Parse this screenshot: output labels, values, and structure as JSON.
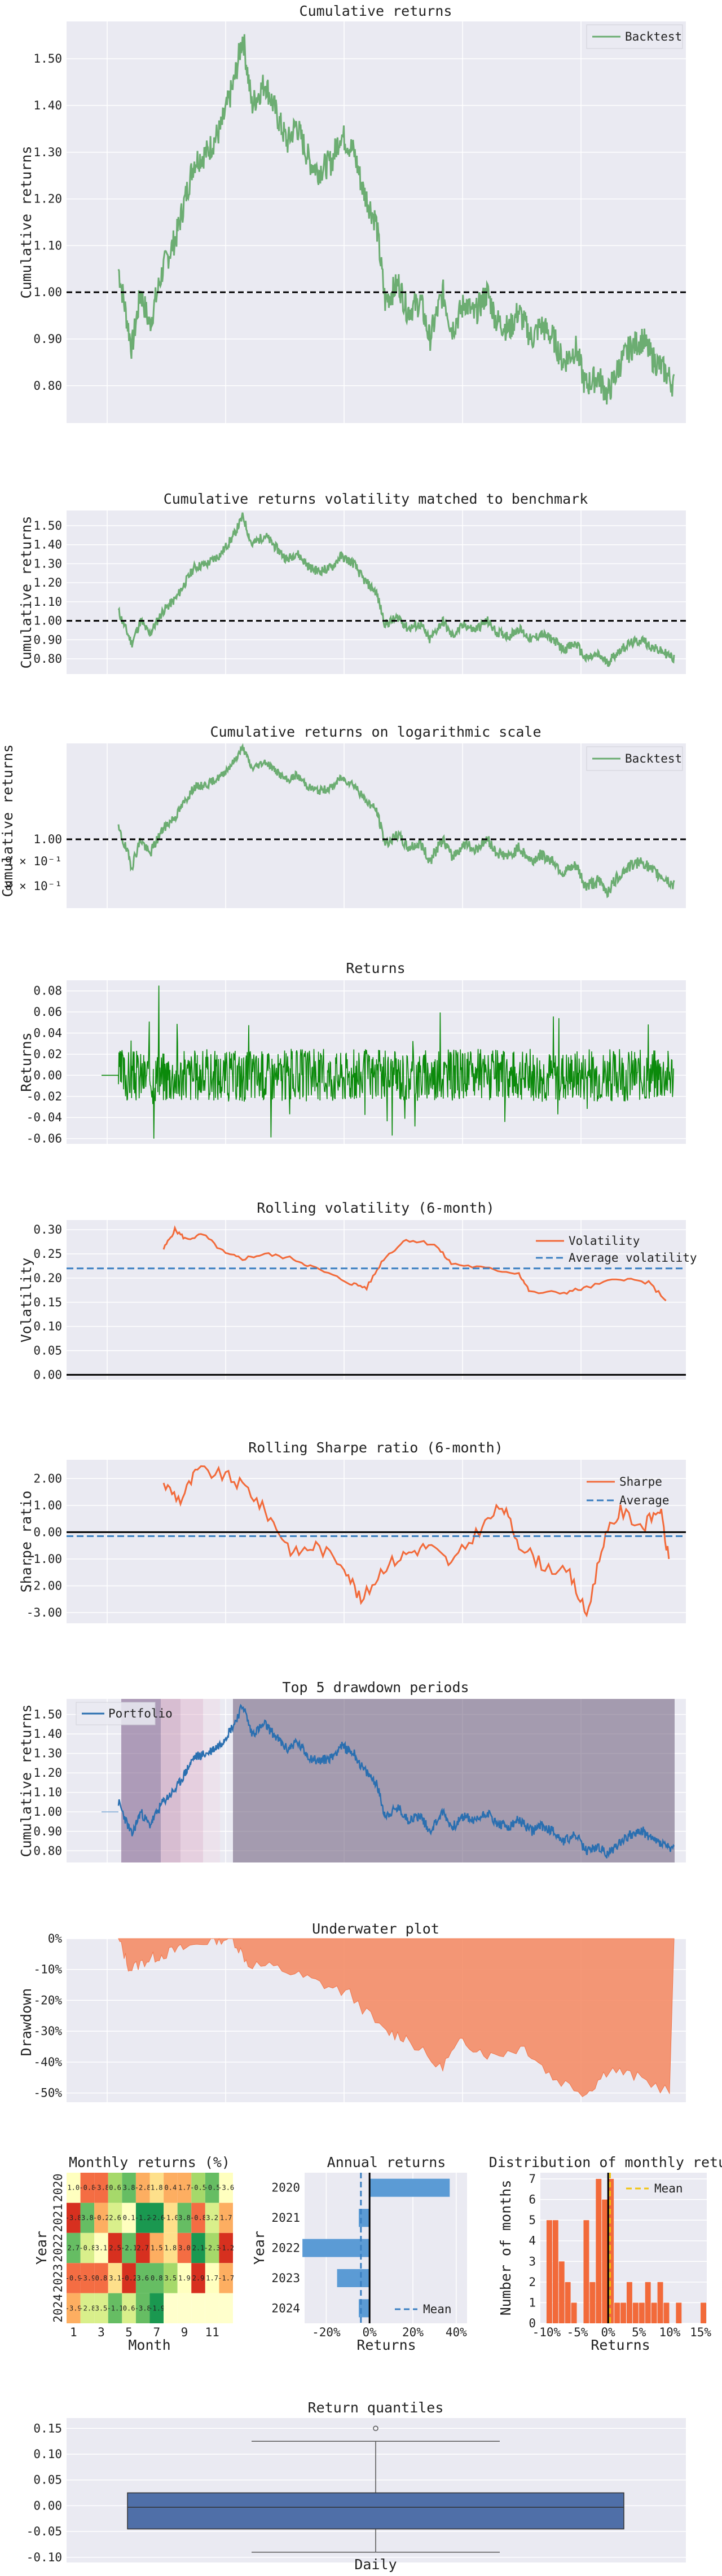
{
  "charts": {
    "c1": {
      "type": "line",
      "title": "Cumulative returns",
      "ylabel": "Cumulative returns",
      "ytick_labels": [
        "1.50",
        "1.40",
        "1.30",
        "1.20",
        "1.10",
        "1.00",
        "0.90",
        "0.80"
      ],
      "legend": [
        "Backtest"
      ]
    },
    "c2": {
      "type": "line",
      "title": "Cumulative returns volatility matched to benchmark",
      "ylabel": "Cumulative returns",
      "ytick_labels": [
        "1.50",
        "1.40",
        "1.30",
        "1.20",
        "1.10",
        "1.00",
        "0.90",
        "0.80"
      ]
    },
    "c3": {
      "type": "line",
      "title": "Cumulative returns on logarithmic scale",
      "ylabel": "Cumulative returns",
      "ytick_labels": [
        "1.00"
      ],
      "legend": [
        "Backtest"
      ]
    },
    "c4": {
      "type": "line",
      "title": "Returns",
      "ylabel": "Returns",
      "ytick_labels": [
        "0.08",
        "0.06",
        "0.04",
        "0.02",
        "0.00",
        "-0.02",
        "-0.04",
        "-0.06"
      ]
    },
    "c5": {
      "type": "line",
      "title": "Rolling volatility (6-month)",
      "ylabel": "Volatility",
      "ytick_labels": [
        "0.30",
        "0.25",
        "0.20",
        "0.15",
        "0.10",
        "0.05",
        "0.00"
      ],
      "legend": [
        "Volatility",
        "Average volatility"
      ]
    },
    "c6": {
      "type": "line",
      "title": "Rolling Sharpe ratio (6-month)",
      "ylabel": "Sharpe ratio",
      "ytick_labels": [
        "2.00",
        "1.00",
        "0.00",
        "-1.00",
        "-2.00",
        "-3.00"
      ],
      "legend": [
        "Sharpe",
        "Average"
      ]
    },
    "c7": {
      "type": "line",
      "title": "Top 5 drawdown periods",
      "ylabel": "Cumulative returns",
      "ytick_labels": [
        "1.50",
        "1.40",
        "1.30",
        "1.20",
        "1.10",
        "1.00",
        "0.90",
        "0.80"
      ],
      "legend": [
        "Portfolio"
      ]
    },
    "c8": {
      "type": "area",
      "title": "Underwater plot",
      "ylabel": "Drawdown",
      "ytick_labels": [
        "0%",
        "-10%",
        "-20%",
        "-30%",
        "-40%",
        "-50%"
      ]
    },
    "c9": {
      "type": "heatmap",
      "title": "Monthly returns (%)",
      "xlabel": "Month",
      "ylabel": "Year",
      "years": [
        "2020",
        "2021",
        "2022",
        "2023",
        "2024"
      ],
      "xtick_labels": [
        "1",
        "3",
        "5",
        "7",
        "9",
        "11"
      ]
    },
    "c10": {
      "type": "bar",
      "title": "Annual returns",
      "ylabel": "Year",
      "xlabel": "Returns",
      "categories": [
        "2020",
        "2021",
        "2022",
        "2023",
        "2024"
      ],
      "values": [
        37,
        -5,
        -31,
        -15,
        -5
      ],
      "xtick_labels": [
        "-20%",
        "0%",
        "20%",
        "40%"
      ],
      "legend": [
        "Mean"
      ]
    },
    "c11": {
      "type": "bar",
      "title": "Distribution of monthly returns",
      "ylabel": "Number of months",
      "xlabel": "Returns",
      "ytick_labels": [
        "7",
        "6",
        "5",
        "4",
        "3",
        "2",
        "1",
        "0"
      ],
      "xtick_labels": [
        "-10%",
        "-5%",
        "0%",
        "5%",
        "10%",
        "15%"
      ],
      "legend": [
        "Mean"
      ]
    },
    "c12": {
      "type": "box",
      "title": "Return quantiles",
      "xlabel": "Daily",
      "ytick_labels": [
        "0.15",
        "0.10",
        "0.05",
        "0.00",
        "-0.05",
        "-0.10"
      ],
      "stats": {
        "min": -0.09,
        "q1": -0.045,
        "median": -0.003,
        "q3": 0.025,
        "max": 0.125,
        "outlier": 0.15
      }
    }
  },
  "chart_data": [
    {
      "type": "line",
      "title": "Cumulative returns",
      "ylabel": "Cumulative returns",
      "ylim": [
        0.72,
        1.58
      ],
      "series": [
        {
          "name": "Backtest",
          "x": [
            0,
            6,
            10,
            14,
            20,
            26,
            30,
            34,
            40,
            46,
            52,
            56,
            60,
            66,
            72,
            76,
            80,
            86,
            90,
            96,
            100,
            106,
            110,
            116,
            120,
            126,
            130,
            136,
            140,
            146,
            150,
            156,
            160,
            166,
            170,
            176,
            180,
            186,
            190,
            196,
            200,
            206,
            210,
            216,
            220,
            226,
            230,
            236,
            240,
            246,
            250
          ],
          "values": [
            1.05,
            0.88,
            1.0,
            0.93,
            1.05,
            1.12,
            1.2,
            1.28,
            1.3,
            1.35,
            1.45,
            1.55,
            1.4,
            1.45,
            1.37,
            1.32,
            1.36,
            1.28,
            1.26,
            1.28,
            1.34,
            1.3,
            1.22,
            1.15,
            0.98,
            1.02,
            0.96,
            0.98,
            0.9,
            1.0,
            0.92,
            0.98,
            0.95,
            1.0,
            0.94,
            0.92,
            0.96,
            0.9,
            0.93,
            0.9,
            0.85,
            0.88,
            0.8,
            0.82,
            0.78,
            0.85,
            0.88,
            0.9,
            0.86,
            0.83,
            0.8
          ]
        }
      ],
      "hline": 1.0
    },
    {
      "type": "line",
      "title": "Cumulative returns volatility matched to benchmark",
      "ylim": [
        0.72,
        1.58
      ],
      "hline": 1.0
    },
    {
      "type": "line",
      "title": "Cumulative returns on logarithmic scale",
      "yscale": "log",
      "hline": 1.0
    },
    {
      "type": "line",
      "title": "Returns",
      "ylabel": "Returns",
      "ylim": [
        -0.065,
        0.09
      ]
    },
    {
      "type": "line",
      "title": "Rolling volatility (6-month)",
      "ylim": [
        -0.01,
        0.32
      ],
      "series": [
        {
          "name": "Volatility"
        },
        {
          "name": "Average volatility",
          "value": 0.22
        }
      ]
    },
    {
      "type": "line",
      "title": "Rolling Sharpe ratio (6-month)",
      "ylim": [
        -3.4,
        2.7
      ],
      "series": [
        {
          "name": "Sharpe"
        },
        {
          "name": "Average",
          "value": -0.15
        }
      ]
    },
    {
      "type": "line",
      "title": "Top 5 drawdown periods",
      "ylim": [
        0.74,
        1.58
      ]
    },
    {
      "type": "area",
      "title": "Underwater plot",
      "ylim": [
        -53,
        0
      ]
    },
    {
      "type": "heatmap",
      "title": "Monthly returns (%)",
      "years": [
        "2020",
        "2021",
        "2022",
        "2023",
        "2024"
      ],
      "months": [
        1,
        2,
        3,
        4,
        5,
        6,
        7,
        8,
        9,
        10,
        11,
        12
      ]
    },
    {
      "type": "bar",
      "title": "Annual returns",
      "categories": [
        "2020",
        "2021",
        "2022",
        "2023",
        "2024"
      ],
      "values": [
        37,
        -5,
        -31,
        -15,
        -5
      ]
    },
    {
      "type": "bar",
      "title": "Distribution of monthly returns",
      "bins": [
        -10,
        -9,
        -8,
        -7,
        -6,
        -5,
        -4,
        -3,
        -2,
        -1,
        0,
        1,
        2,
        3,
        4,
        5,
        6,
        7,
        8,
        9,
        10,
        11,
        12,
        13,
        14,
        15
      ],
      "counts": [
        5,
        5,
        3,
        2,
        1,
        0,
        5,
        2,
        7,
        6,
        7,
        1,
        1,
        2,
        1,
        1,
        2,
        1,
        2,
        1,
        0,
        1,
        0,
        0,
        0,
        1
      ]
    },
    {
      "type": "box",
      "title": "Return quantiles",
      "categories": [
        "Daily"
      ],
      "values": {
        "min": -0.09,
        "q1": -0.045,
        "median": -0.003,
        "q3": 0.025,
        "max": 0.125,
        "outlier": 0.15
      }
    }
  ]
}
